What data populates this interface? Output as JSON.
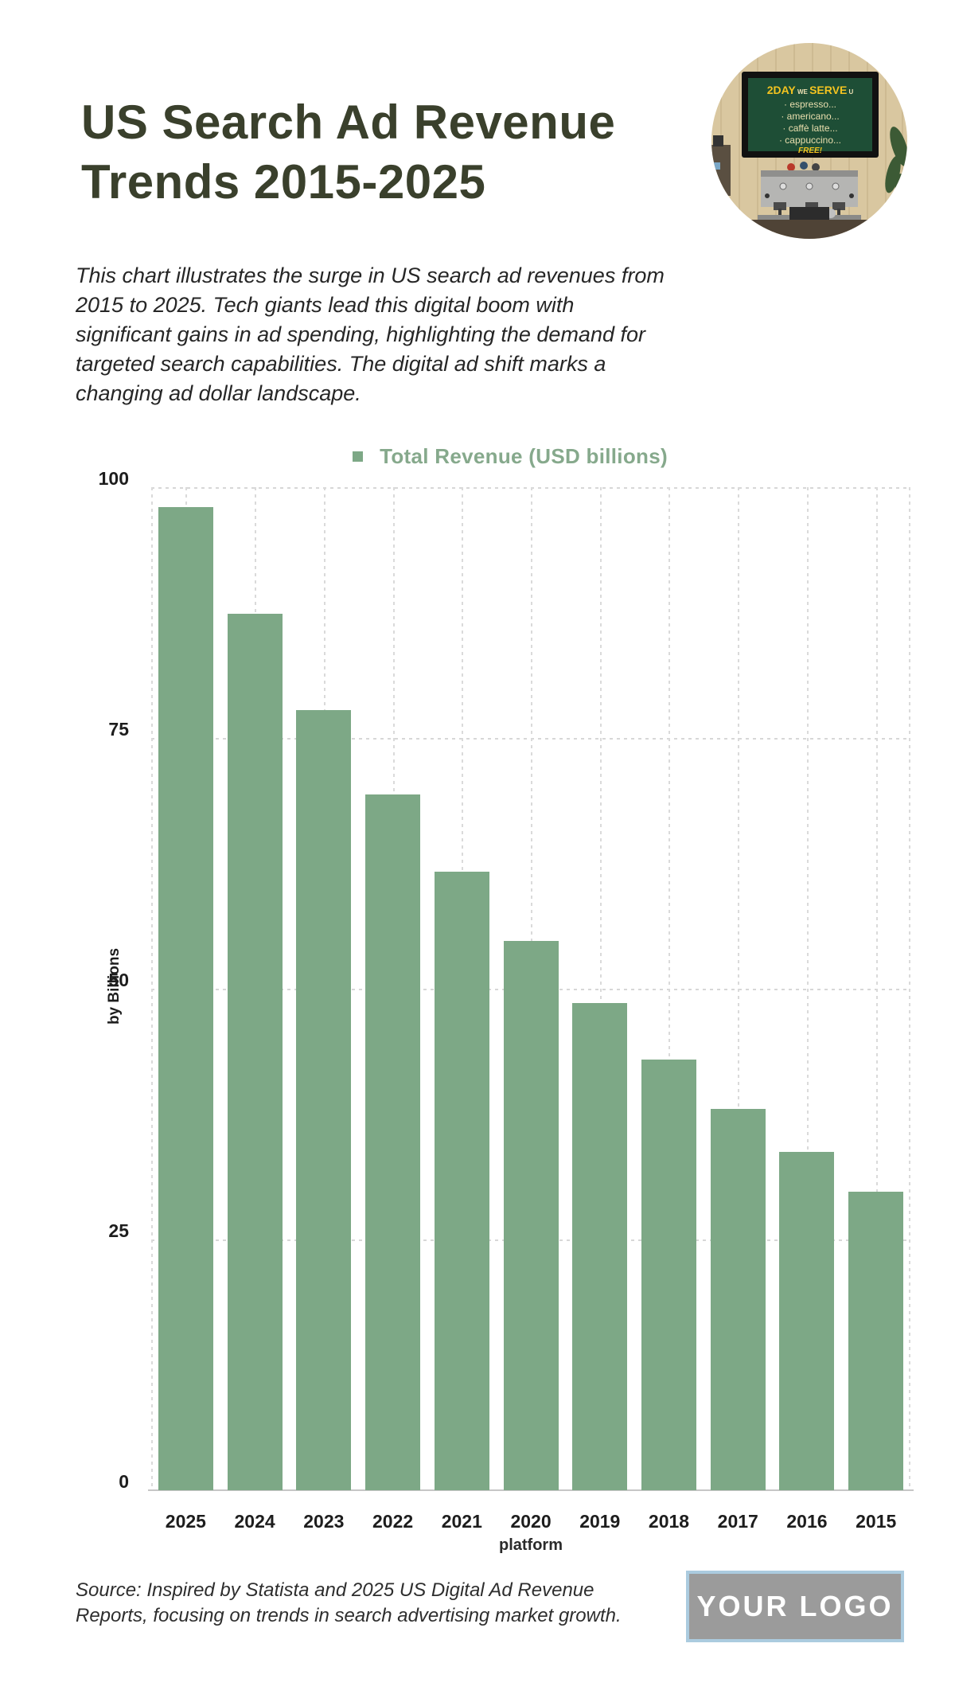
{
  "header": {
    "title_line1": "US Search Ad Revenue",
    "title_line2": "Trends 2015-2025",
    "description_lines": [
      "This chart illustrates the surge in US search ad revenues from",
      "2015 to 2025. Tech giants lead this digital boom with",
      "significant gains in ad spending, highlighting the demand for",
      "targeted search capabilities. The digital ad shift marks a",
      "changing ad dollar landscape."
    ]
  },
  "photo_sign": {
    "headline_big_1": "2DAY",
    "headline_small_1": " WE ",
    "headline_big_2": "SERVE",
    "headline_small_2": " U",
    "items": [
      "· espresso...",
      "· americano...",
      "· caffè latte...",
      "· cappuccino..."
    ],
    "free_label": "FREE!"
  },
  "chart_data": {
    "type": "bar",
    "title": "",
    "legend": [
      "Total Revenue (USD billions)"
    ],
    "legend_position": "top",
    "categories": [
      "2025",
      "2024",
      "2023",
      "2022",
      "2021",
      "2020",
      "2019",
      "2018",
      "2017",
      "2016",
      "2015"
    ],
    "series": [
      {
        "name": "Total Revenue (USD billions)",
        "values": [
          98,
          87.4,
          77.8,
          69.4,
          61.7,
          54.8,
          48.6,
          42.9,
          38,
          33.7,
          29.8
        ]
      }
    ],
    "xlabel": "platform",
    "ylabel": "by Billions",
    "yticks": [
      0,
      25,
      50,
      75,
      100
    ],
    "ylim": [
      0,
      100
    ],
    "grid": true,
    "bar_color": "#7da886",
    "legend_text_color": "#86a98c"
  },
  "footer": {
    "source_lines": [
      "Source: Inspired by Statista and 2025 US Digital Ad Revenue",
      "Reports, focusing on trends in search advertising market growth."
    ],
    "logo_text": "YOUR LOGO"
  }
}
